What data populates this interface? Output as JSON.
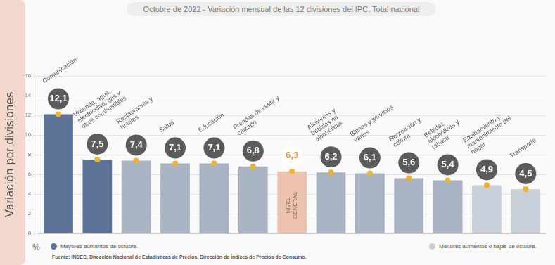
{
  "chart_data": {
    "type": "bar",
    "title": "Octubre de 2022 - Variación mensual de las 12 divisiones del IPC. Total nacional",
    "ylabel": "Variación por divisiones",
    "y_unit": "%",
    "categories": [
      "Comunicación",
      "Vivienda, agua, electricidad, gas y otros combustibles",
      "Restaurantes y hoteles",
      "Salud",
      "Educación",
      "Prendas de vestir y calzado",
      "NIVEL GENERAL",
      "Alimentos y bebidas no alcohólicas",
      "Bienes y servicios varios",
      "Recreación y cultura",
      "Bebidas alcohólicas y tabaco",
      "Equipamiento y mantenimiento del hogar",
      "Transporte"
    ],
    "values": [
      12.1,
      7.5,
      7.4,
      7.1,
      7.1,
      6.8,
      6.3,
      6.2,
      6.1,
      5.6,
      5.4,
      4.9,
      4.5
    ],
    "value_labels": [
      "12,1",
      "7,5",
      "7,4",
      "7,1",
      "7,1",
      "6,8",
      "6,3",
      "6,2",
      "6,1",
      "5,6",
      "5,4",
      "4,9",
      "4,5"
    ],
    "colors": [
      "#5d7398",
      "#5d7398",
      "#a8b4c4",
      "#a8b4c4",
      "#a8b4c4",
      "#a8b4c4",
      "#edc3b0",
      "#a8b4c4",
      "#a8b4c4",
      "#a8b4c4",
      "#a8b4c4",
      "#c9cfd8",
      "#c9cfd8"
    ],
    "reference_category": "NIVEL GENERAL",
    "ylim": [
      0,
      16
    ],
    "yticks": [
      0,
      2,
      4,
      6,
      8,
      10,
      12,
      14,
      16
    ],
    "grid": true,
    "data_labels": true,
    "tick_labels": "y",
    "legend_items": [
      {
        "label": "Mayores aumentos de octubre.",
        "color": "#5d7398"
      },
      {
        "label": "Menores aumentos o bajas de octubre.",
        "color": "#c9cfd8"
      }
    ],
    "source": "Fuente: INDEC, Dirección Nacional de Estadísticas de Precios. Dirección de Índices de Precios de Consumo."
  }
}
